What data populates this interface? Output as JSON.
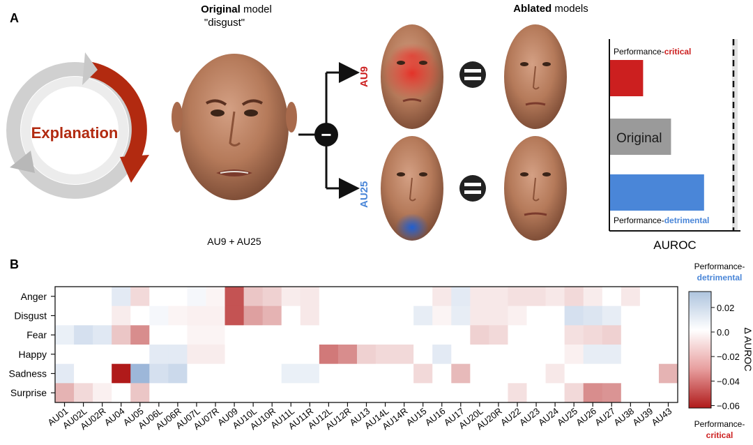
{
  "panel_a": {
    "label": "A",
    "cycle_text": "Explanation",
    "original": {
      "bold": "Original",
      "rest": " model",
      "sub": "\"disgust\"",
      "caption": "AU9 + AU25"
    },
    "ablated": {
      "bold": "Ablated",
      "rest": " models"
    },
    "branch_top": "AU9",
    "branch_bottom": "AU25",
    "minus_symbol": "−",
    "bar_chart": {
      "crit_prefix": "Performance-",
      "crit_word": "critical",
      "det_prefix": "Performance-",
      "det_word": "detrimental",
      "original_label": "Original",
      "xlabel": "AUROC",
      "values": {
        "critical": 0.45,
        "original": 0.83,
        "detrimental": 1.28,
        "reference": 1.69
      },
      "xlim": [
        0,
        1.8
      ]
    }
  },
  "panel_b": {
    "label": "B",
    "colorbar": {
      "top_prefix": "Performance-",
      "top_word": "detrimental",
      "bottom_prefix": "Performance-",
      "bottom_word": "critical",
      "label": "Δ AUROC"
    }
  },
  "colors": {
    "critical": "#cc1f1f",
    "detrimental": "#4a86d8",
    "original": "#9a9a9a",
    "arrow": "#b52a12"
  },
  "chart_data": {
    "type": "heatmap",
    "rows": [
      "Anger",
      "Disgust",
      "Fear",
      "Happy",
      "Sadness",
      "Surprise"
    ],
    "columns": [
      "AU01",
      "AU02L",
      "AU02R",
      "AU04",
      "AU05",
      "AU06L",
      "AU06R",
      "AU07L",
      "AU07R",
      "AU09",
      "AU10L",
      "AU10R",
      "AU11L",
      "AU11R",
      "AU12L",
      "AU12R",
      "AU13",
      "AU14L",
      "AU14R",
      "AU15",
      "AU16",
      "AU17",
      "AU20L",
      "AU20R",
      "AU22",
      "AU23",
      "AU24",
      "AU25",
      "AU26",
      "AU27",
      "AU38",
      "AU39",
      "AU43"
    ],
    "values": [
      [
        0,
        0,
        0,
        0.008,
        -0.01,
        0,
        0,
        0.003,
        -0.003,
        -0.045,
        -0.015,
        -0.012,
        -0.005,
        -0.006,
        0,
        0,
        0,
        0,
        0,
        0,
        -0.006,
        0.008,
        -0.006,
        -0.006,
        -0.008,
        -0.008,
        -0.006,
        -0.01,
        -0.005,
        0,
        -0.006,
        0,
        0
      ],
      [
        0,
        0,
        0,
        -0.005,
        0,
        0.003,
        -0.003,
        -0.004,
        -0.004,
        -0.045,
        -0.025,
        -0.02,
        0,
        -0.006,
        0,
        0,
        0,
        0,
        0,
        0.007,
        -0.003,
        0.007,
        -0.006,
        -0.006,
        -0.004,
        0,
        0,
        0.012,
        0.01,
        0.007,
        0,
        0,
        0
      ],
      [
        0.006,
        0.012,
        0.009,
        -0.015,
        -0.03,
        0,
        0,
        -0.003,
        -0.003,
        0,
        0,
        0,
        0,
        0,
        0,
        0,
        0,
        0,
        0,
        0,
        0,
        0,
        -0.012,
        -0.01,
        0,
        0,
        0,
        -0.008,
        -0.01,
        -0.012,
        0,
        0,
        0
      ],
      [
        0,
        0,
        0,
        0,
        0,
        0.008,
        0.008,
        -0.005,
        -0.005,
        0,
        0,
        0,
        0,
        0,
        -0.035,
        -0.03,
        -0.012,
        -0.01,
        -0.01,
        0,
        0.008,
        0,
        0,
        0,
        0,
        0,
        0,
        -0.004,
        0.007,
        0.007,
        0,
        0,
        0
      ],
      [
        0.008,
        0,
        0,
        -0.06,
        0.028,
        0.012,
        0.015,
        0,
        0,
        0,
        0,
        0,
        0.006,
        0.006,
        0,
        0,
        0,
        0,
        0,
        -0.01,
        0,
        -0.018,
        0,
        0,
        0,
        0,
        -0.006,
        0,
        0,
        0,
        0,
        0,
        -0.02
      ],
      [
        -0.02,
        -0.01,
        -0.004,
        0,
        -0.015,
        0,
        0,
        0,
        0,
        0,
        0,
        0,
        0,
        0,
        0,
        0,
        0,
        0,
        0,
        0,
        0,
        0,
        0,
        0,
        -0.008,
        0,
        0,
        -0.01,
        -0.03,
        -0.028,
        0,
        0,
        0
      ]
    ],
    "colorbar_ticks": [
      0.02,
      0.0,
      -0.02,
      -0.04,
      -0.06
    ],
    "colorbar_tick_labels": [
      "0.02",
      "0.0",
      "−0.02",
      "−0.04",
      "−0.06"
    ],
    "vlim": [
      -0.06,
      0.03
    ],
    "zlabel": "Δ AUROC"
  }
}
